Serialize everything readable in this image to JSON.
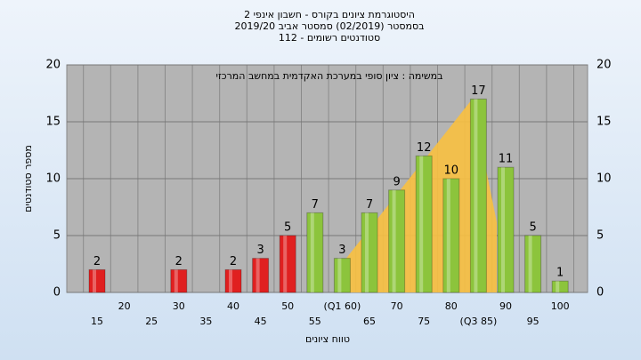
{
  "chart_data": {
    "type": "bar",
    "title": [
      "היסטוגרמת ציונים בקורס - חשבון אינפי 2",
      "בסמסטר  (02/2019)  סמסטר אביב 2019/20",
      "סטודנטים רשומים - 112"
    ],
    "annotation": "במשימה : ציון סופי במערכת האקדמית במחשב המרכזי",
    "x_label": "טווח ציונים",
    "y_label": "מספר סטודנטים",
    "categories": [
      "15",
      "20",
      "25",
      "30",
      "35",
      "40",
      "45",
      "50",
      "55",
      "(Q1 60)",
      "65",
      "70",
      "75",
      "80",
      "(Q3 85)",
      "90",
      "95",
      "100"
    ],
    "values": [
      2,
      0,
      0,
      2,
      0,
      2,
      3,
      5,
      7,
      3,
      7,
      9,
      12,
      10,
      17,
      11,
      5,
      1
    ],
    "colors": [
      "#e02020",
      "#e02020",
      "#e02020",
      "#e02020",
      "#e02020",
      "#e02020",
      "#e02020",
      "#e02020",
      "#8cc43c",
      "#8cc43c",
      "#8cc43c",
      "#8cc43c",
      "#8cc43c",
      "#8cc43c",
      "#8cc43c",
      "#8cc43c",
      "#8cc43c",
      "#8cc43c"
    ],
    "ylim": [
      0,
      20
    ],
    "yticks": [
      0,
      5,
      10,
      15,
      20
    ],
    "grid": true
  }
}
